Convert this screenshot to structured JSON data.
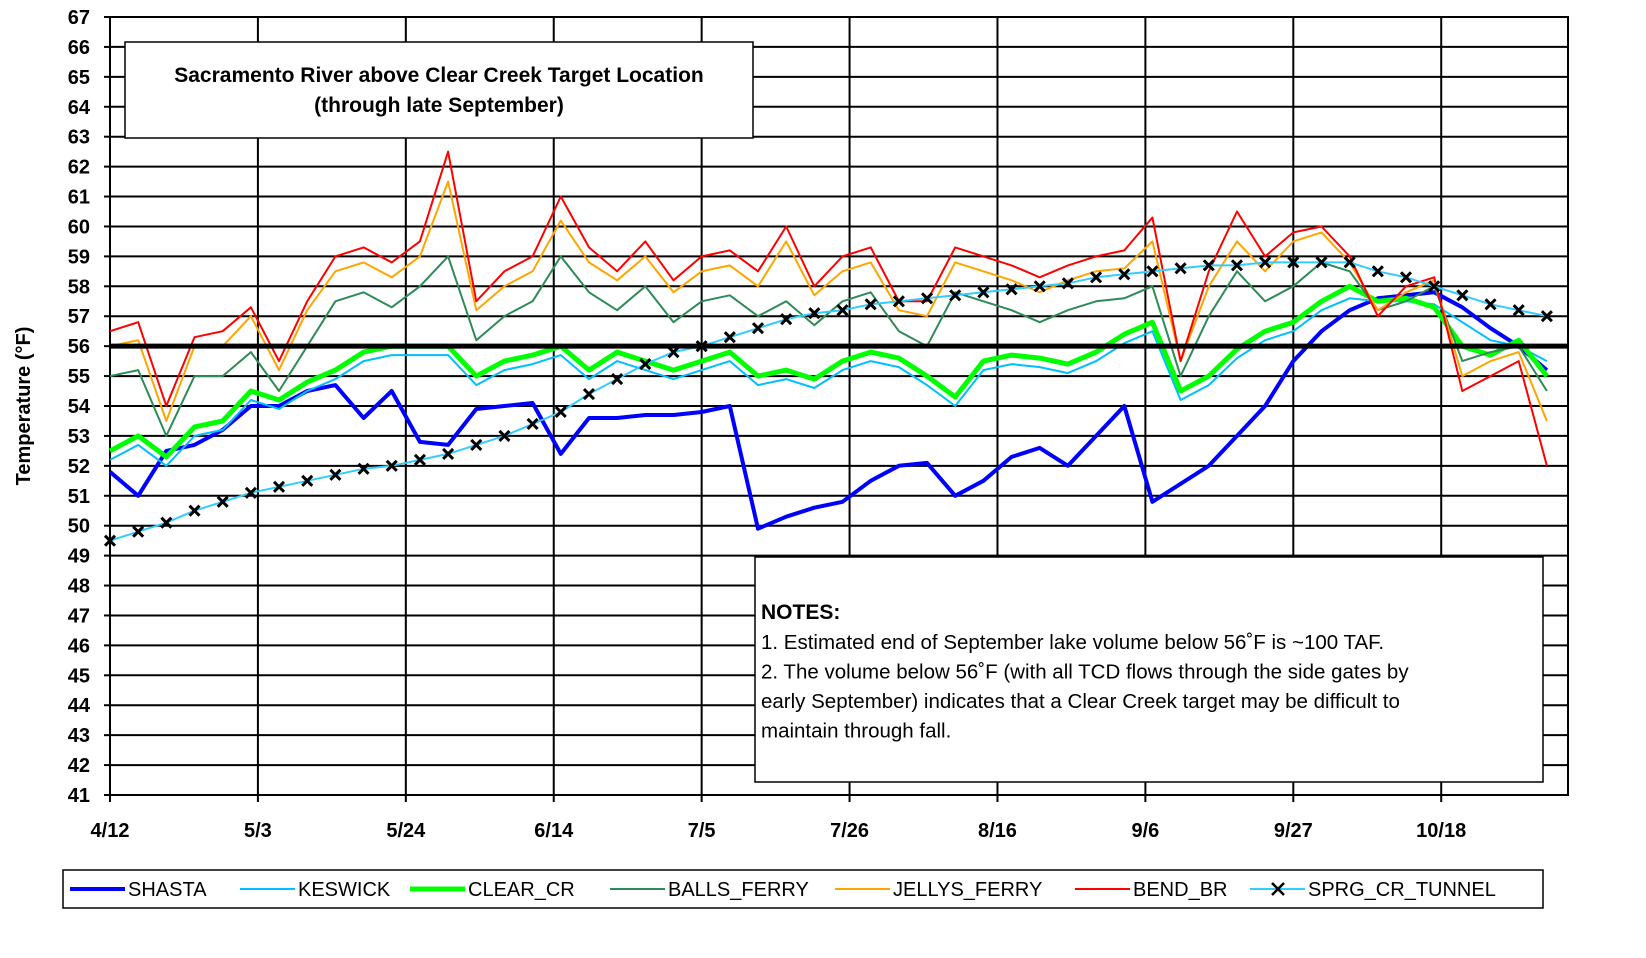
{
  "chart_data": {
    "type": "line",
    "title_lines": [
      "Sacramento River above Clear Creek Target Location",
      "(through late September)"
    ],
    "y_label": "Temperature (°F)",
    "notes_title": "NOTES:",
    "notes_lines": [
      "1. Estimated end of September lake volume below 56˚F is ~100 TAF.",
      "2. The volume below 56˚F (with all TCD flows through the side gates by",
      "early September) indicates that a Clear Creek target may be difficult to",
      "maintain through fall."
    ],
    "xlim": [
      0,
      207
    ],
    "xticks": [
      {
        "value": 0,
        "label": "4/12"
      },
      {
        "value": 21,
        "label": "5/3"
      },
      {
        "value": 42,
        "label": "5/24"
      },
      {
        "value": 63,
        "label": "6/14"
      },
      {
        "value": 84,
        "label": "7/5"
      },
      {
        "value": 105,
        "label": "7/26"
      },
      {
        "value": 126,
        "label": "8/16"
      },
      {
        "value": 147,
        "label": "9/6"
      },
      {
        "value": 168,
        "label": "9/27"
      },
      {
        "value": 189,
        "label": "10/18"
      }
    ],
    "ylim": [
      41,
      67
    ],
    "yticks": [
      41,
      42,
      43,
      44,
      45,
      46,
      47,
      48,
      49,
      50,
      51,
      52,
      53,
      54,
      55,
      56,
      57,
      58,
      59,
      60,
      61,
      62,
      63,
      64,
      65,
      66,
      67
    ],
    "grid": true,
    "reference_lines": [
      56
    ],
    "x": [
      0,
      4,
      8,
      12,
      16,
      20,
      24,
      28,
      32,
      36,
      40,
      44,
      48,
      52,
      56,
      60,
      64,
      68,
      72,
      76,
      80,
      84,
      88,
      92,
      96,
      100,
      104,
      108,
      112,
      116,
      120,
      124,
      128,
      132,
      136,
      140,
      144,
      148,
      152,
      156,
      160,
      164,
      168,
      172,
      176,
      180,
      184,
      188,
      192,
      196,
      200,
      204
    ],
    "series": [
      {
        "name": "SHASTA",
        "color": "#0000ff",
        "width": 4,
        "values": [
          51.8,
          51.0,
          52.5,
          52.7,
          53.2,
          54.0,
          54.0,
          54.5,
          54.7,
          53.6,
          54.5,
          52.8,
          52.7,
          53.9,
          54.0,
          54.1,
          52.4,
          53.6,
          53.6,
          53.7,
          53.7,
          53.8,
          54.0,
          49.9,
          50.3,
          50.6,
          50.8,
          51.5,
          52.0,
          52.1,
          51.0,
          51.5,
          52.3,
          52.6,
          52.0,
          53.0,
          54.0,
          50.8,
          51.4,
          52.0,
          53.0,
          54.0,
          55.5,
          56.5,
          57.2,
          57.6,
          57.7,
          57.8,
          57.3,
          56.6,
          56.0,
          55.2
        ]
      },
      {
        "name": "KESWICK",
        "color": "#00bfff",
        "width": 2,
        "values": [
          52.2,
          52.7,
          52.0,
          53.0,
          53.2,
          54.2,
          53.9,
          54.5,
          54.9,
          55.5,
          55.7,
          55.7,
          55.7,
          54.7,
          55.2,
          55.4,
          55.7,
          54.9,
          55.5,
          55.2,
          54.9,
          55.2,
          55.5,
          54.7,
          54.9,
          54.6,
          55.2,
          55.5,
          55.3,
          54.7,
          54.0,
          55.2,
          55.4,
          55.3,
          55.1,
          55.5,
          56.1,
          56.5,
          54.2,
          54.7,
          55.6,
          56.2,
          56.5,
          57.2,
          57.6,
          57.5,
          57.5,
          57.4,
          56.8,
          56.2,
          56.0,
          55.5
        ]
      },
      {
        "name": "CLEAR_CR",
        "color": "#00ff00",
        "width": 5,
        "values": [
          52.5,
          53.0,
          52.3,
          53.3,
          53.5,
          54.5,
          54.2,
          54.8,
          55.2,
          55.8,
          56.0,
          56.0,
          56.0,
          55.0,
          55.5,
          55.7,
          56.0,
          55.2,
          55.8,
          55.5,
          55.2,
          55.5,
          55.8,
          55.0,
          55.2,
          54.9,
          55.5,
          55.8,
          55.6,
          55.0,
          54.3,
          55.5,
          55.7,
          55.6,
          55.4,
          55.8,
          56.4,
          56.8,
          54.5,
          55.0,
          55.9,
          56.5,
          56.8,
          57.5,
          58.0,
          57.5,
          57.6,
          57.3,
          56.0,
          55.7,
          56.2,
          55.0
        ]
      },
      {
        "name": "BALLS_FERRY",
        "color": "#2e8b57",
        "width": 2,
        "values": [
          55.0,
          55.2,
          53.0,
          55.0,
          55.0,
          55.8,
          54.5,
          56.0,
          57.5,
          57.8,
          57.3,
          58.0,
          59.0,
          56.2,
          57.0,
          57.5,
          59.0,
          57.8,
          57.2,
          58.0,
          56.8,
          57.5,
          57.7,
          57.0,
          57.5,
          56.7,
          57.5,
          57.8,
          56.5,
          56.0,
          57.8,
          57.5,
          57.2,
          56.8,
          57.2,
          57.5,
          57.6,
          58.0,
          55.0,
          57.0,
          58.5,
          57.5,
          58.0,
          58.8,
          58.5,
          57.2,
          57.5,
          58.0,
          55.5,
          55.8,
          56.0,
          54.5
        ]
      },
      {
        "name": "JELLYS_FERRY",
        "color": "#ffa500",
        "width": 2,
        "values": [
          56.0,
          56.2,
          53.5,
          56.0,
          56.0,
          57.0,
          55.2,
          57.2,
          58.5,
          58.8,
          58.3,
          59.0,
          61.5,
          57.2,
          58.0,
          58.5,
          60.2,
          58.8,
          58.2,
          59.0,
          57.8,
          58.5,
          58.7,
          58.0,
          59.5,
          57.7,
          58.5,
          58.8,
          57.2,
          57.0,
          58.8,
          58.5,
          58.2,
          57.8,
          58.2,
          58.5,
          58.6,
          59.5,
          55.5,
          58.0,
          59.5,
          58.5,
          59.5,
          59.8,
          58.8,
          57.2,
          57.8,
          58.2,
          55.0,
          55.5,
          55.8,
          53.5
        ]
      },
      {
        "name": "BEND_BR",
        "color": "#ff0000",
        "width": 2,
        "values": [
          56.5,
          56.8,
          54.0,
          56.3,
          56.5,
          57.3,
          55.5,
          57.5,
          59.0,
          59.3,
          58.8,
          59.5,
          62.5,
          57.5,
          58.5,
          59.0,
          61.0,
          59.3,
          58.5,
          59.5,
          58.2,
          59.0,
          59.2,
          58.5,
          60.0,
          58.0,
          59.0,
          59.3,
          57.5,
          57.5,
          59.3,
          59.0,
          58.7,
          58.3,
          58.7,
          59.0,
          59.2,
          60.3,
          55.5,
          58.5,
          60.5,
          59.0,
          59.8,
          60.0,
          59.0,
          57.0,
          58.0,
          58.3,
          54.5,
          55.0,
          55.5,
          52.0
        ]
      },
      {
        "name": "SPRG_CR_TUNNEL",
        "color": "#33ccff",
        "width": 2,
        "marker": "x",
        "values": [
          49.5,
          49.8,
          50.1,
          50.5,
          50.8,
          51.1,
          51.3,
          51.5,
          51.7,
          51.9,
          52.0,
          52.2,
          52.4,
          52.7,
          53.0,
          53.4,
          53.8,
          54.4,
          54.9,
          55.4,
          55.8,
          56.0,
          56.3,
          56.6,
          56.9,
          57.1,
          57.2,
          57.4,
          57.5,
          57.6,
          57.7,
          57.8,
          57.9,
          58.0,
          58.1,
          58.3,
          58.4,
          58.5,
          58.6,
          58.7,
          58.7,
          58.8,
          58.8,
          58.8,
          58.8,
          58.5,
          58.3,
          58.0,
          57.7,
          57.4,
          57.2,
          57.0
        ]
      }
    ]
  }
}
